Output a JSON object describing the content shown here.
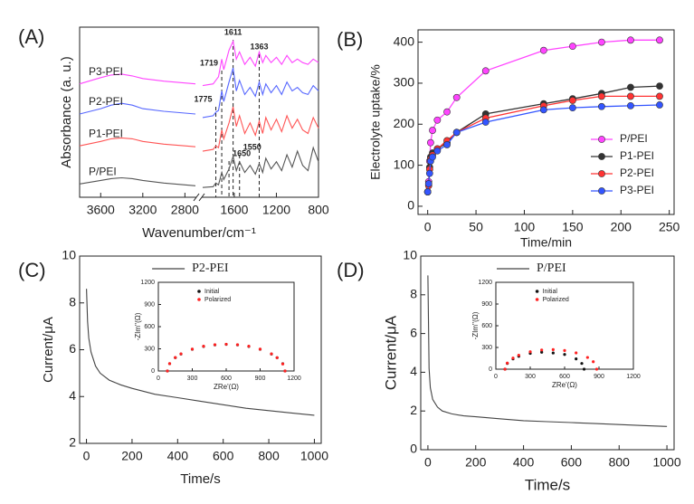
{
  "chart_data": [
    {
      "type": "line",
      "panel": "(A)",
      "xlabel": "Wavenumber/cm⁻¹",
      "ylabel": "Absorbance (a. u.)",
      "xlim": [
        3800,
        800
      ],
      "xbreak": [
        2700,
        1900
      ],
      "ylim": [
        0,
        9.6
      ],
      "xticks": [
        3600,
        3200,
        2800,
        1600,
        1200,
        800
      ],
      "style": "line",
      "legend": "inline",
      "annotations": [
        1775,
        1719,
        1611,
        1363,
        1650,
        1550
      ],
      "x": [
        3800,
        3600,
        3500,
        3400,
        3300,
        3200,
        3000,
        2800,
        2700,
        1900,
        1800,
        1775,
        1750,
        1719,
        1700,
        1650,
        1611,
        1580,
        1550,
        1500,
        1450,
        1400,
        1363,
        1330,
        1300,
        1250,
        1200,
        1150,
        1100,
        1050,
        1000,
        950,
        900,
        850,
        800
      ],
      "series": [
        {
          "name": "P3-PEI",
          "color": "#ff44ff",
          "values": [
            6.4,
            6.75,
            6.9,
            6.95,
            6.85,
            6.7,
            6.55,
            6.45,
            6.4,
            6.3,
            6.4,
            6.6,
            6.8,
            7.8,
            7.2,
            8.3,
            8.8,
            7.8,
            8.2,
            7.5,
            7.9,
            7.4,
            8.2,
            7.6,
            8.0,
            7.6,
            7.9,
            7.5,
            8.0,
            7.6,
            7.8,
            7.6,
            7.5,
            7.8,
            7.6
          ]
        },
        {
          "name": "P2-PEI",
          "color": "#5566ff",
          "values": [
            4.7,
            5.0,
            5.2,
            5.3,
            5.2,
            5.0,
            4.85,
            4.75,
            4.7,
            4.5,
            4.6,
            4.8,
            4.9,
            6.0,
            5.4,
            6.5,
            7.3,
            6.0,
            6.6,
            5.8,
            6.2,
            5.7,
            6.5,
            5.8,
            6.4,
            5.9,
            6.3,
            5.8,
            6.5,
            6.0,
            6.2,
            5.9,
            5.8,
            6.3,
            6.0
          ]
        },
        {
          "name": "P1-PEI",
          "color": "#ff5555",
          "values": [
            2.9,
            3.15,
            3.3,
            3.35,
            3.3,
            3.15,
            3.0,
            2.9,
            2.85,
            2.6,
            2.7,
            2.9,
            2.8,
            3.8,
            3.3,
            4.2,
            5.1,
            4.0,
            4.6,
            3.6,
            4.2,
            3.5,
            4.3,
            3.6,
            4.5,
            3.8,
            4.4,
            3.7,
            4.6,
            3.9,
            4.4,
            3.8,
            3.6,
            4.5,
            3.9
          ]
        },
        {
          "name": "P/PEI",
          "color": "#555555",
          "values": [
            0.75,
            0.95,
            1.05,
            1.1,
            1.05,
            0.95,
            0.8,
            0.7,
            0.65,
            0.55,
            0.6,
            0.8,
            0.7,
            1.4,
            1.0,
            1.6,
            2.3,
            1.5,
            2.0,
            1.4,
            1.8,
            1.3,
            1.9,
            1.4,
            2.2,
            1.6,
            2.0,
            1.5,
            2.4,
            1.7,
            2.6,
            1.8,
            1.5,
            2.8,
            2.0
          ]
        }
      ]
    },
    {
      "type": "line",
      "panel": "(B)",
      "xlabel": "Time/min",
      "ylabel": "Electrolyte uptake/%",
      "xlim": [
        -10,
        255
      ],
      "ylim": [
        -20,
        430
      ],
      "xticks": [
        0,
        50,
        100,
        150,
        200,
        250
      ],
      "yticks": [
        0,
        100,
        200,
        300,
        400
      ],
      "style": "line+markers",
      "legend": "lower right",
      "x": [
        0,
        1,
        2,
        3,
        5,
        10,
        20,
        30,
        60,
        120,
        150,
        180,
        210,
        240
      ],
      "series": [
        {
          "name": "P/PEI",
          "color": "#ff44ff",
          "values": [
            35,
            60,
            110,
            155,
            185,
            210,
            230,
            265,
            330,
            380,
            390,
            400,
            405,
            405
          ]
        },
        {
          "name": "P1-PEI",
          "color": "#333333",
          "values": [
            35,
            55,
            95,
            120,
            130,
            140,
            155,
            180,
            225,
            250,
            262,
            275,
            290,
            293
          ]
        },
        {
          "name": "P2-PEI",
          "color": "#ff3333",
          "values": [
            35,
            50,
            90,
            115,
            125,
            140,
            160,
            180,
            215,
            245,
            258,
            268,
            268,
            268
          ]
        },
        {
          "name": "P3-PEI",
          "color": "#3355ff",
          "values": [
            35,
            55,
            80,
            110,
            120,
            135,
            150,
            180,
            205,
            235,
            240,
            243,
            245,
            247
          ]
        }
      ]
    },
    {
      "type": "line",
      "panel": "(C)",
      "xlabel": "Time/s",
      "ylabel": "Current/μA",
      "xlim": [
        -30,
        1030
      ],
      "ylim": [
        2,
        10
      ],
      "xticks": [
        0,
        200,
        400,
        600,
        800,
        1000
      ],
      "yticks": [
        2,
        4,
        6,
        8,
        10
      ],
      "style": "line",
      "legend": "top",
      "x": [
        0,
        5,
        10,
        20,
        40,
        60,
        100,
        150,
        200,
        300,
        400,
        500,
        600,
        700,
        800,
        900,
        1000
      ],
      "series": [
        {
          "name": "P2-PEI",
          "color": "#444444",
          "values": [
            8.6,
            7.2,
            6.5,
            5.9,
            5.3,
            5.0,
            4.7,
            4.5,
            4.35,
            4.1,
            3.95,
            3.8,
            3.65,
            3.5,
            3.4,
            3.3,
            3.2
          ]
        }
      ],
      "inset": {
        "type": "scatter",
        "xlabel": "ZRe'(Ω)",
        "ylabel": "-ZIm''(Ω)",
        "xlim": [
          0,
          1200
        ],
        "ylim": [
          0,
          1200
        ],
        "xticks": [
          0,
          300,
          600,
          900,
          1200
        ],
        "yticks": [
          0,
          300,
          600,
          900,
          1200
        ],
        "style": "markers",
        "legend": "top",
        "series": [
          {
            "name": "Initial",
            "color": "#111111",
            "x": [
              80,
              100,
              150,
              200,
              300,
              400,
              500,
              600,
              700,
              800,
              900,
              1000,
              1050,
              1100,
              1120
            ],
            "values": [
              0,
              99,
              180,
              230,
              294,
              332,
              353,
              360,
              353,
              332,
              294,
              230,
              180,
              99,
              0
            ]
          },
          {
            "name": "Polarized",
            "color": "#ff2222",
            "x": [
              80,
              100,
              150,
              200,
              300,
              400,
              500,
              600,
              700,
              800,
              900,
              1000,
              1050,
              1100,
              1120
            ],
            "values": [
              0,
              100,
              182,
              232,
              296,
              335,
              356,
              362,
              356,
              335,
              296,
              232,
              180,
              95,
              0
            ]
          }
        ]
      }
    },
    {
      "type": "line",
      "panel": "(D)",
      "xlabel": "Time/s",
      "ylabel": "Current/μA",
      "xlim": [
        -30,
        1030
      ],
      "ylim": [
        0,
        10
      ],
      "xticks": [
        0,
        200,
        400,
        600,
        800,
        1000
      ],
      "yticks": [
        0,
        2,
        4,
        6,
        8,
        10
      ],
      "style": "line",
      "legend": "top",
      "x": [
        0,
        5,
        10,
        20,
        40,
        60,
        100,
        150,
        200,
        300,
        400,
        500,
        600,
        700,
        800,
        900,
        1000
      ],
      "series": [
        {
          "name": "P/PEI",
          "color": "#444444",
          "values": [
            9.0,
            4.2,
            3.2,
            2.6,
            2.2,
            2.0,
            1.85,
            1.75,
            1.7,
            1.6,
            1.5,
            1.45,
            1.4,
            1.35,
            1.3,
            1.25,
            1.2
          ]
        }
      ],
      "inset": {
        "type": "scatter",
        "xlabel": "ZRe'(Ω)",
        "ylabel": "-ZIm''(Ω)",
        "xlim": [
          0,
          1200
        ],
        "ylim": [
          0,
          1200
        ],
        "xticks": [
          0,
          300,
          600,
          900,
          1200
        ],
        "yticks": [
          0,
          300,
          600,
          900,
          1200
        ],
        "style": "markers",
        "legend": "top",
        "series": [
          {
            "name": "Initial",
            "color": "#111111",
            "x": [
              80,
              100,
              150,
              200,
              300,
              400,
              500,
              600,
              700,
              750,
              770
            ],
            "values": [
              0,
              79,
              142,
              178,
              219,
              234,
              224,
              203,
              142,
              79,
              0
            ]
          },
          {
            "name": "Polarized",
            "color": "#ff2222",
            "x": [
              80,
              100,
              150,
              200,
              300,
              400,
              500,
              600,
              700,
              800,
              850,
              880
            ],
            "values": [
              0,
              84,
              153,
              193,
              241,
              265,
              270,
              258,
              225,
              162,
              103,
              0
            ]
          }
        ]
      }
    }
  ]
}
